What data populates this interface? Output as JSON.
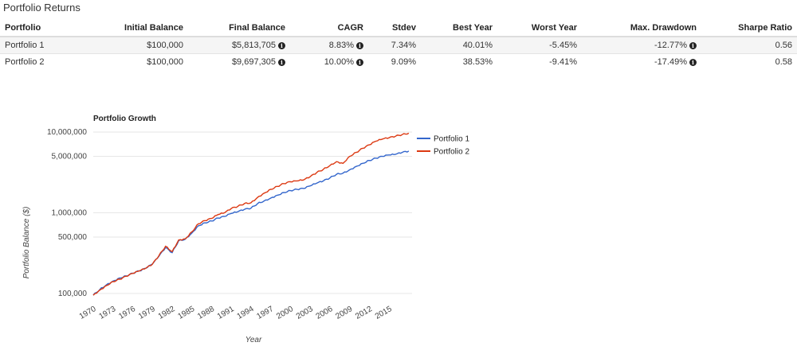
{
  "section_title": "Portfolio Returns",
  "table": {
    "headers": [
      "Portfolio",
      "Initial Balance",
      "Final Balance",
      "CAGR",
      "Stdev",
      "Best Year",
      "Worst Year",
      "Max. Drawdown",
      "Sharpe Ratio"
    ],
    "rows": [
      {
        "portfolio": "Portfolio 1",
        "initial": "$100,000",
        "final": "$5,813,705",
        "cagr": "8.83%",
        "stdev": "7.34%",
        "best": "40.01%",
        "worst": "-5.45%",
        "drawdown": "-12.77%",
        "sharpe": "0.56"
      },
      {
        "portfolio": "Portfolio 2",
        "initial": "$100,000",
        "final": "$9,697,305",
        "cagr": "10.00%",
        "stdev": "9.09%",
        "best": "38.53%",
        "worst": "-9.41%",
        "drawdown": "-17.49%",
        "sharpe": "0.58"
      }
    ],
    "info_icon": "info-circle-icon"
  },
  "chart_data": {
    "type": "line",
    "title": "Portfolio Growth",
    "xlabel": "Year",
    "ylabel": "Portfolio Balance ($)",
    "yscale": "log",
    "ylim": [
      85000,
      12000000
    ],
    "xlim": [
      1970,
      2018.5
    ],
    "x_ticks": [
      "1970",
      "1973",
      "1976",
      "1979",
      "1982",
      "1985",
      "1988",
      "1991",
      "1994",
      "1997",
      "2000",
      "2003",
      "2006",
      "2009",
      "2012",
      "2015"
    ],
    "y_ticks": [
      {
        "value": 100000,
        "label": "100,000"
      },
      {
        "value": 500000,
        "label": "500,000"
      },
      {
        "value": 1000000,
        "label": "1,000,000"
      },
      {
        "value": 5000000,
        "label": "5,000,000"
      },
      {
        "value": 10000000,
        "label": "10,000,000"
      }
    ],
    "x": [
      1970,
      1971,
      1972,
      1973,
      1974,
      1975,
      1976,
      1977,
      1978,
      1979,
      1980,
      1981,
      1982,
      1983,
      1984,
      1985,
      1986,
      1987,
      1988,
      1989,
      1990,
      1991,
      1992,
      1993,
      1994,
      1995,
      1996,
      1997,
      1998,
      1999,
      2000,
      2001,
      2002,
      2003,
      2004,
      2005,
      2006,
      2007,
      2008,
      2009,
      2010,
      2011,
      2012,
      2013,
      2014,
      2015,
      2016,
      2017,
      2018
    ],
    "series": [
      {
        "name": "Portfolio 1",
        "color": "#3366cc",
        "values": [
          95000,
          112000,
          128000,
          142000,
          155000,
          165000,
          178000,
          190000,
          205000,
          232000,
          290000,
          370000,
          320000,
          450000,
          470000,
          560000,
          690000,
          750000,
          790000,
          860000,
          900000,
          980000,
          1030000,
          1100000,
          1140000,
          1300000,
          1400000,
          1520000,
          1650000,
          1780000,
          1880000,
          1950000,
          2000000,
          2150000,
          2330000,
          2480000,
          2700000,
          3000000,
          3100000,
          3400000,
          3750000,
          4100000,
          4450000,
          4750000,
          5000000,
          5200000,
          5300000,
          5600000,
          5813705
        ]
      },
      {
        "name": "Portfolio 2",
        "color": "#dc3912",
        "values": [
          95000,
          110000,
          125000,
          140000,
          150000,
          163000,
          177000,
          190000,
          205000,
          230000,
          295000,
          385000,
          330000,
          460000,
          475000,
          580000,
          730000,
          800000,
          850000,
          950000,
          1000000,
          1130000,
          1200000,
          1300000,
          1330000,
          1550000,
          1750000,
          1950000,
          2120000,
          2300000,
          2420000,
          2480000,
          2550000,
          2800000,
          3150000,
          3450000,
          3850000,
          4300000,
          4100000,
          5000000,
          5600000,
          6300000,
          6950000,
          7700000,
          8200000,
          8500000,
          8900000,
          9300000,
          9697305
        ]
      }
    ],
    "legend": "right"
  }
}
